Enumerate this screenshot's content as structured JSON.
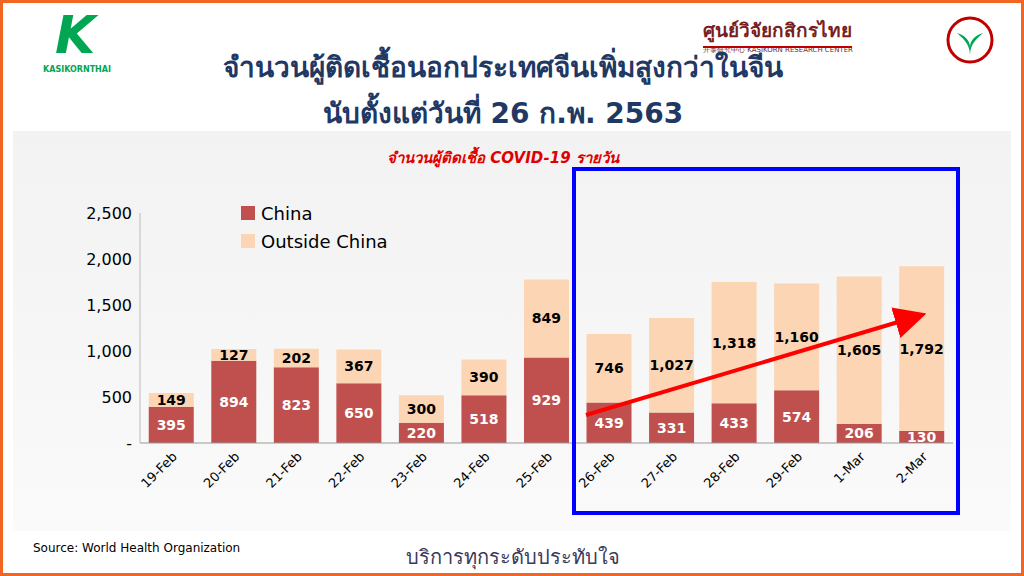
{
  "header": {
    "logo_text": "KASIKORNTHAI",
    "logo_letter": "K",
    "center_name": "ศูนย์วิจัยกสิกรไทย",
    "center_name_en": "开泰研究中心 KASIKORN RESEARCH CENTER"
  },
  "chart_data": {
    "type": "bar",
    "title": [
      "จำนวนผู้ติดเชื้อนอกประเทศจีนเพิ่มสูงกว่าในจีน",
      "นับตั้งแต่วันที่ 26 ก.พ. 2563"
    ],
    "subtitle": "จำนวนผู้ติดเชื้อ COVID-19 รายวัน",
    "categories": [
      "19-Feb",
      "20-Feb",
      "21-Feb",
      "22-Feb",
      "23-Feb",
      "24-Feb",
      "25-Feb",
      "26-Feb",
      "27-Feb",
      "28-Feb",
      "29-Feb",
      "1-Mar",
      "2-Mar"
    ],
    "series": [
      {
        "name": "China",
        "color": "#c0504d",
        "values": [
          395,
          894,
          823,
          650,
          220,
          518,
          929,
          439,
          331,
          433,
          574,
          206,
          130
        ],
        "value_labels": [
          "395",
          "894",
          "823",
          "650",
          "220",
          "518",
          "929",
          "439",
          "331",
          "433",
          "574",
          "206",
          "130"
        ]
      },
      {
        "name": "Outside China",
        "color": "#fcd5b4",
        "values": [
          149,
          127,
          202,
          367,
          300,
          390,
          849,
          746,
          1027,
          1318,
          1160,
          1605,
          1792
        ],
        "value_labels": [
          "149",
          "127",
          "202",
          "367",
          "300",
          "390",
          "849",
          "746",
          "1,027",
          "1,318",
          "1,160",
          "1,605",
          "1,792"
        ]
      }
    ],
    "ylim": [
      0,
      2500
    ],
    "yticks": [
      {
        "value": 0,
        "label": "-"
      },
      500,
      {
        "value": 1000,
        "label": "1,000"
      },
      {
        "value": 1500,
        "label": "1,500"
      },
      {
        "value": 2000,
        "label": "2,000"
      },
      {
        "value": 2500,
        "label": "2,500"
      }
    ],
    "stacked": true,
    "data_labels": true,
    "legend": "upper left",
    "grid": false
  },
  "footer": {
    "source": "Source: World Health Organization",
    "slogan": "บริการทุกระดับประทับใจ"
  }
}
